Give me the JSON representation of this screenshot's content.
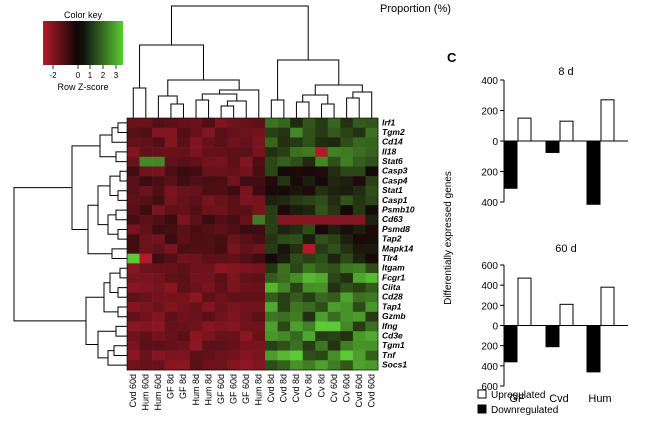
{
  "header": {
    "proportion_label": "Proportion  (%)"
  },
  "color_key": {
    "title": "Color key",
    "ticks": [
      "-2",
      "0",
      "1",
      "2",
      "3"
    ],
    "axis_label": "Row Z-score",
    "colors": {
      "low": "#b01a2a",
      "mid": "#120808",
      "high": "#5cc936"
    }
  },
  "heatmap": {
    "columns": [
      "Cvd 60d",
      "Hum 60d",
      "Hum 60d",
      "GF 8d",
      "GF 8d",
      "Hum 8d",
      "Hum 8d",
      "GF 60d",
      "GF 60d",
      "GF 60d",
      "Hum 8d",
      "Cvd 8d",
      "Cvd 8d",
      "Cvd 8d",
      "Cv 8d",
      "Cv 8d",
      "Cv 60d",
      "Cv 60d",
      "Cvd 60d",
      "Cvd 60d"
    ],
    "rows": [
      "Irf1",
      "Tgm2",
      "Cd14",
      "Il18",
      "Stat6",
      "Casp3",
      "Casp4",
      "Stat1",
      "Casp1",
      "Psmb10",
      "Cd63",
      "Psmd8",
      "Tap2",
      "Mapk14",
      "Tlr4",
      "Itgam",
      "Fcgr1",
      "Ciita",
      "Cd28",
      "Tap1",
      "Gzmb",
      "Ifng",
      "Cd3e",
      "Tgm1",
      "Tnf",
      "Socs1"
    ]
  },
  "panel_label": "C",
  "chart_data": [
    {
      "type": "bar",
      "title": "8 d",
      "categories": [
        "GF",
        "Cvd",
        "Hum"
      ],
      "series": [
        {
          "name": "Upregulated",
          "values": [
            150,
            130,
            270
          ]
        },
        {
          "name": "Downregulated",
          "values": [
            310,
            75,
            415
          ]
        }
      ],
      "ylim": [
        -400,
        400
      ],
      "yticks": [
        "400",
        "200",
        "0",
        "200",
        "400"
      ]
    },
    {
      "type": "bar",
      "title": "60 d",
      "categories": [
        "GF",
        "Cvd",
        "Hum"
      ],
      "series": [
        {
          "name": "Upregulated",
          "values": [
            470,
            210,
            380
          ]
        },
        {
          "name": "Downregulated",
          "values": [
            360,
            210,
            460
          ]
        }
      ],
      "ylim": [
        -600,
        600
      ],
      "yticks": [
        "600",
        "400",
        "200",
        "0",
        "200",
        "400",
        "600"
      ]
    }
  ],
  "ylabel": "Differentially expressed genes",
  "legend": {
    "up": "Upregulated",
    "down": "Downregulated"
  }
}
